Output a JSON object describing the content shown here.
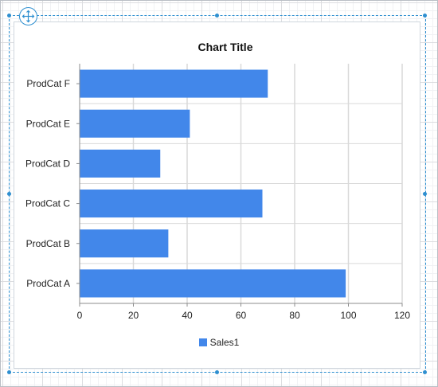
{
  "chart_data": {
    "type": "bar",
    "orientation": "horizontal",
    "title": "Chart Title",
    "categories": [
      "ProdCat A",
      "ProdCat B",
      "ProdCat C",
      "ProdCat D",
      "ProdCat E",
      "ProdCat F"
    ],
    "series": [
      {
        "name": "Sales1",
        "values": [
          99,
          33,
          68,
          30,
          41,
          70
        ]
      }
    ],
    "xlim": [
      0,
      120
    ],
    "xticks": [
      0,
      20,
      40,
      60,
      80,
      100,
      120
    ],
    "xlabel": "",
    "ylabel": "",
    "grid": true,
    "legend_position": "bottom"
  },
  "colors": {
    "series": "#4287ea",
    "selection": "#2e8fd0",
    "gridline": "#d9d9d9",
    "axis": "#8c8c8c"
  },
  "icons": {
    "move": "move-arrows-icon"
  }
}
